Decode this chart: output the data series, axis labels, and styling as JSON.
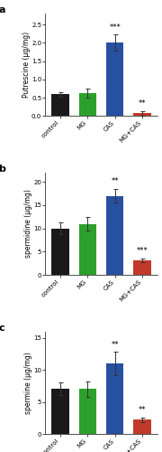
{
  "panels": [
    {
      "label": "a",
      "ylabel": "Putrescine (μg/mg)",
      "categories": [
        "control",
        "MG",
        "CAS",
        "MG+CAS"
      ],
      "values": [
        0.6,
        0.63,
        2.0,
        0.08
      ],
      "errors": [
        0.06,
        0.12,
        0.22,
        0.06
      ],
      "colors": [
        "#1a1a1a",
        "#2ca02c",
        "#2850a0",
        "#c0392b"
      ],
      "ylim": [
        0,
        2.8
      ],
      "yticks": [
        0.0,
        0.5,
        1.0,
        1.5,
        2.0,
        2.5
      ],
      "significance": [
        "",
        "",
        "***",
        "**"
      ],
      "sig_color": "#000000"
    },
    {
      "label": "b",
      "ylabel": "spermidine (μg/mg)",
      "categories": [
        "control",
        "MG",
        "CAS",
        "MG+CAS"
      ],
      "values": [
        10.0,
        11.0,
        17.0,
        3.2
      ],
      "errors": [
        1.2,
        1.5,
        1.5,
        0.4
      ],
      "colors": [
        "#1a1a1a",
        "#2ca02c",
        "#2850a0",
        "#c0392b"
      ],
      "ylim": [
        0,
        22
      ],
      "yticks": [
        0,
        5,
        10,
        15,
        20
      ],
      "significance": [
        "",
        "",
        "**",
        "***"
      ],
      "sig_color": "#000000"
    },
    {
      "label": "c",
      "ylabel": "spermine (μg/mg)",
      "categories": [
        "control",
        "MG",
        "CAS",
        "MG+CAS"
      ],
      "values": [
        7.1,
        7.0,
        11.0,
        2.2
      ],
      "errors": [
        1.0,
        1.2,
        1.8,
        0.4
      ],
      "colors": [
        "#1a1a1a",
        "#2ca02c",
        "#2850a0",
        "#c0392b"
      ],
      "ylim": [
        0,
        16
      ],
      "yticks": [
        0,
        5,
        10,
        15
      ],
      "significance": [
        "",
        "",
        "**",
        "**"
      ],
      "sig_color": "#000000"
    }
  ],
  "background_color": "#ffffff",
  "bar_width": 0.65,
  "tick_fontsize": 5.0,
  "label_fontsize": 5.5,
  "sig_fontsize": 6.0,
  "panel_label_fontsize": 8
}
